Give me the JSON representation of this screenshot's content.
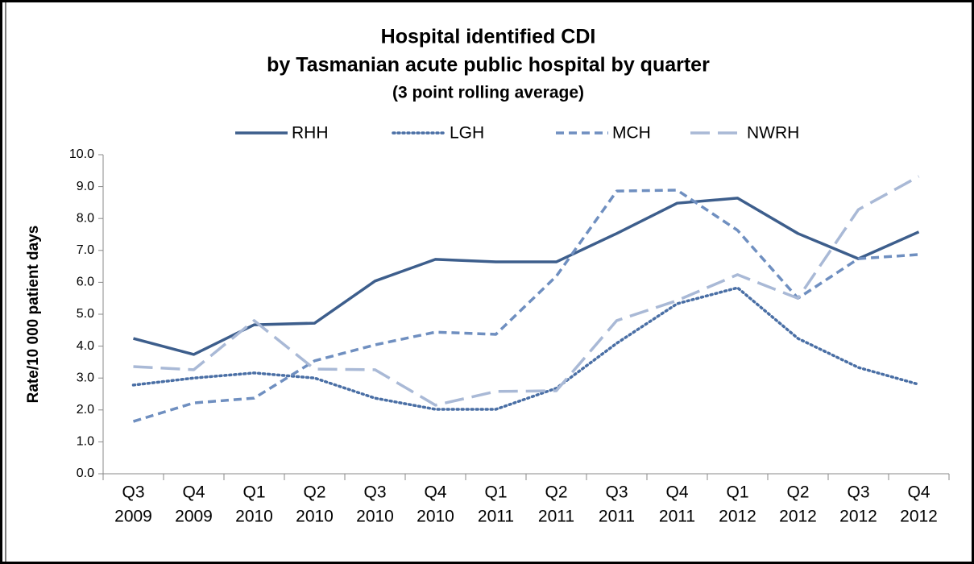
{
  "chart_data": {
    "type": "line",
    "title": [
      "Hospital identified CDI",
      "by Tasmanian acute public hospital by quarter",
      "(3 point rolling average)"
    ],
    "y_label": "Rate/10 000 patient days",
    "categories": [
      [
        "Q3",
        "2009"
      ],
      [
        "Q4",
        "2009"
      ],
      [
        "Q1",
        "2010"
      ],
      [
        "Q2",
        "2010"
      ],
      [
        "Q3",
        "2010"
      ],
      [
        "Q4",
        "2010"
      ],
      [
        "Q1",
        "2011"
      ],
      [
        "Q2",
        "2011"
      ],
      [
        "Q3",
        "2011"
      ],
      [
        "Q4",
        "2011"
      ],
      [
        "Q1",
        "2012"
      ],
      [
        "Q2",
        "2012"
      ],
      [
        "Q3",
        "2012"
      ],
      [
        "Q4",
        "2012"
      ]
    ],
    "series": [
      {
        "name": "RHH",
        "color": "#3d5e8c",
        "line_style": "solid",
        "values": [
          4.24,
          3.74,
          4.67,
          4.72,
          6.04,
          6.72,
          6.64,
          6.64,
          7.53,
          8.48,
          8.64,
          7.53,
          6.74,
          7.58
        ]
      },
      {
        "name": "LGH",
        "color": "#4a6fa5",
        "line_style": "dotted",
        "values": [
          2.78,
          3.0,
          3.16,
          3.0,
          2.37,
          2.02,
          2.02,
          2.68,
          4.09,
          5.33,
          5.83,
          4.24,
          3.33,
          2.8
        ]
      },
      {
        "name": "MCH",
        "color": "#6f8fc0",
        "line_style": "dashed",
        "values": [
          1.64,
          2.22,
          2.37,
          3.54,
          4.04,
          4.44,
          4.37,
          6.19,
          8.86,
          8.89,
          7.63,
          5.5,
          6.74,
          6.87
        ]
      },
      {
        "name": "NWRH",
        "color": "#a9b9d6",
        "line_style": "longdash",
        "values": [
          3.36,
          3.26,
          4.8,
          3.28,
          3.26,
          2.15,
          2.58,
          2.6,
          4.8,
          5.43,
          6.24,
          5.5,
          8.28,
          9.32
        ]
      }
    ],
    "ylim": [
      0,
      10
    ],
    "yticks": [
      {
        "value": 0,
        "label": "0.0"
      },
      {
        "value": 1,
        "label": "1.0"
      },
      {
        "value": 2,
        "label": "2.0"
      },
      {
        "value": 3,
        "label": "3.0"
      },
      {
        "value": 4,
        "label": "4.0"
      },
      {
        "value": 5,
        "label": "5.0"
      },
      {
        "value": 6,
        "label": "6.0"
      },
      {
        "value": 7,
        "label": "7.0"
      },
      {
        "value": 8,
        "label": "8.0"
      },
      {
        "value": 9,
        "label": "9.0"
      },
      {
        "value": 10,
        "label": "10.0"
      }
    ],
    "grid": false,
    "legend": "top"
  }
}
